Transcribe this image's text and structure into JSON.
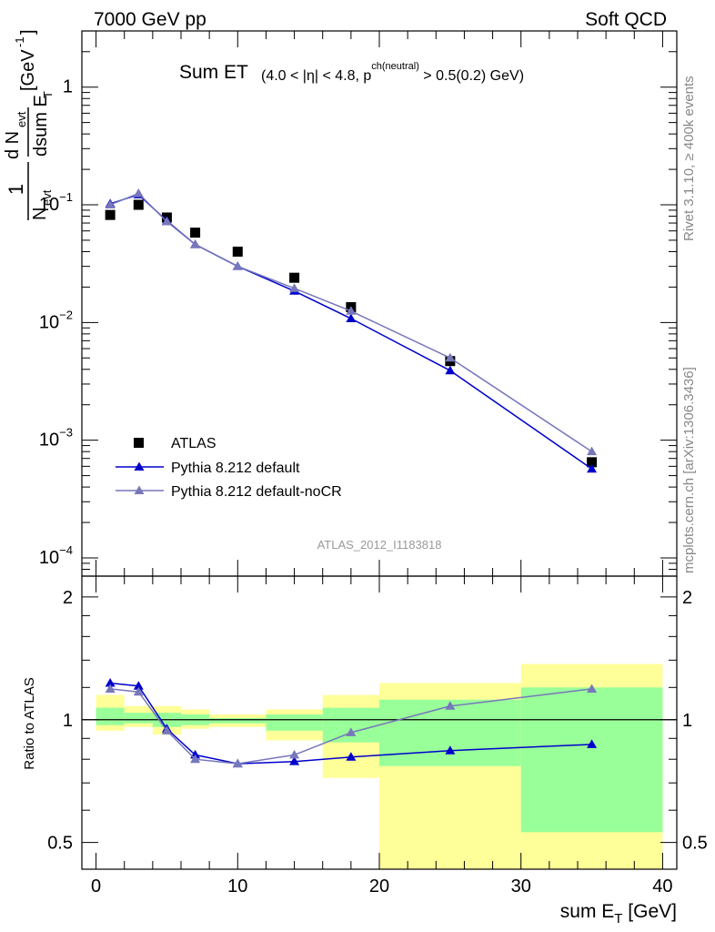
{
  "header": {
    "left": "7000 GeV pp",
    "right": "Soft QCD"
  },
  "side": {
    "rivet": "Rivet 3.1.10, ≥ 400k events",
    "mcplots": "mcplots.cern.ch [arXiv:1306.3436]"
  },
  "chart_data": [
    {
      "type": "scatter",
      "title": "Sum ET",
      "title_sub": "(4.0 < |η| < 4.8, p",
      "title_sup": "ch(neutral)",
      "title_tail": " > 0.5(0.2) GeV)",
      "ylabel": "1/N_evt dN_evt/dsum E_T [GeV^-1]",
      "yscale": "log",
      "ylim": [
        7e-05,
        3.0
      ],
      "xlim": [
        -1,
        41
      ],
      "grid": false,
      "legend_position": "bottom-left",
      "analysis_tag": "ATLAS_2012_I1183818",
      "ytick_labels": [
        {
          "v": 1,
          "m": "1",
          "e": ""
        },
        {
          "v": 0.1,
          "m": "10",
          "e": "−1"
        },
        {
          "v": 0.01,
          "m": "10",
          "e": "−2"
        },
        {
          "v": 0.001,
          "m": "10",
          "e": "−3"
        },
        {
          "v": 0.0001,
          "m": "10",
          "e": "−4"
        }
      ],
      "series": [
        {
          "name": "ATLAS",
          "color": "#000000",
          "marker": "square",
          "x": [
            1,
            3,
            5,
            7,
            10,
            14,
            18,
            25,
            35
          ],
          "y": [
            0.082,
            0.1,
            0.078,
            0.058,
            0.04,
            0.024,
            0.0135,
            0.0047,
            0.00065
          ]
        },
        {
          "name": "Pythia 8.212 default",
          "color": "#0000cc",
          "marker": "triangle",
          "x": [
            1,
            3,
            5,
            7,
            10,
            14,
            18,
            25,
            35
          ],
          "y": [
            0.102,
            0.122,
            0.073,
            0.046,
            0.03,
            0.0185,
            0.0108,
            0.0039,
            0.00057
          ]
        },
        {
          "name": "Pythia 8.212 default-noCR",
          "color": "#7777bb",
          "marker": "triangle",
          "x": [
            1,
            3,
            5,
            7,
            10,
            14,
            18,
            25,
            35
          ],
          "y": [
            0.1,
            0.125,
            0.072,
            0.046,
            0.03,
            0.0195,
            0.0125,
            0.005,
            0.0008
          ]
        }
      ]
    },
    {
      "type": "scatter",
      "ylabel": "Ratio to ATLAS",
      "xlabel": "sum E",
      "xlabel_sub": "T",
      "xlabel_unit": " [GeV]",
      "xlim": [
        -1,
        41
      ],
      "ylim": [
        0.43,
        2.25
      ],
      "yscale": "log",
      "reference_line": 1,
      "x_tick_labels": [
        "0",
        "10",
        "20",
        "30",
        "40"
      ],
      "y_tick_labels": [
        {
          "v": 2,
          "t": "2"
        },
        {
          "v": 1,
          "t": "1"
        },
        {
          "v": 0.5,
          "t": "0.5"
        }
      ],
      "bins": [
        {
          "lo": 0,
          "hi": 2,
          "g": [
            0.97,
            1.07
          ],
          "y": [
            0.94,
            1.15
          ]
        },
        {
          "lo": 2,
          "hi": 4,
          "g": [
            0.98,
            1.04
          ],
          "y": [
            0.96,
            1.08
          ]
        },
        {
          "lo": 4,
          "hi": 6,
          "g": [
            0.96,
            1.04
          ],
          "y": [
            0.92,
            1.08
          ]
        },
        {
          "lo": 6,
          "hi": 8,
          "g": [
            0.97,
            1.03
          ],
          "y": [
            0.95,
            1.06
          ]
        },
        {
          "lo": 8,
          "hi": 12,
          "g": [
            0.98,
            1.01
          ],
          "y": [
            0.96,
            1.03
          ]
        },
        {
          "lo": 12,
          "hi": 16,
          "g": [
            0.94,
            1.03
          ],
          "y": [
            0.89,
            1.06
          ]
        },
        {
          "lo": 16,
          "hi": 20,
          "g": [
            0.88,
            1.07
          ],
          "y": [
            0.72,
            1.15
          ]
        },
        {
          "lo": 20,
          "hi": 30,
          "g": [
            0.77,
            1.12
          ],
          "y": [
            0.42,
            1.23
          ]
        },
        {
          "lo": 30,
          "hi": 40,
          "g": [
            0.53,
            1.2
          ],
          "y": [
            0.4,
            1.37
          ]
        }
      ],
      "band_colors": {
        "inner": "#99ff99",
        "outer": "#ffff99"
      },
      "series": [
        {
          "name": "Pythia 8.212 default",
          "color": "#0000cc",
          "x": [
            1,
            3,
            5,
            7,
            10,
            14,
            18,
            25,
            35
          ],
          "y": [
            1.23,
            1.21,
            0.95,
            0.82,
            0.78,
            0.79,
            0.81,
            0.84,
            0.87
          ]
        },
        {
          "name": "Pythia 8.212 default-noCR",
          "color": "#7777bb",
          "x": [
            1,
            3,
            5,
            7,
            10,
            14,
            18,
            25,
            35
          ],
          "y": [
            1.19,
            1.17,
            0.94,
            0.8,
            0.78,
            0.82,
            0.93,
            1.08,
            1.19
          ]
        }
      ]
    }
  ]
}
